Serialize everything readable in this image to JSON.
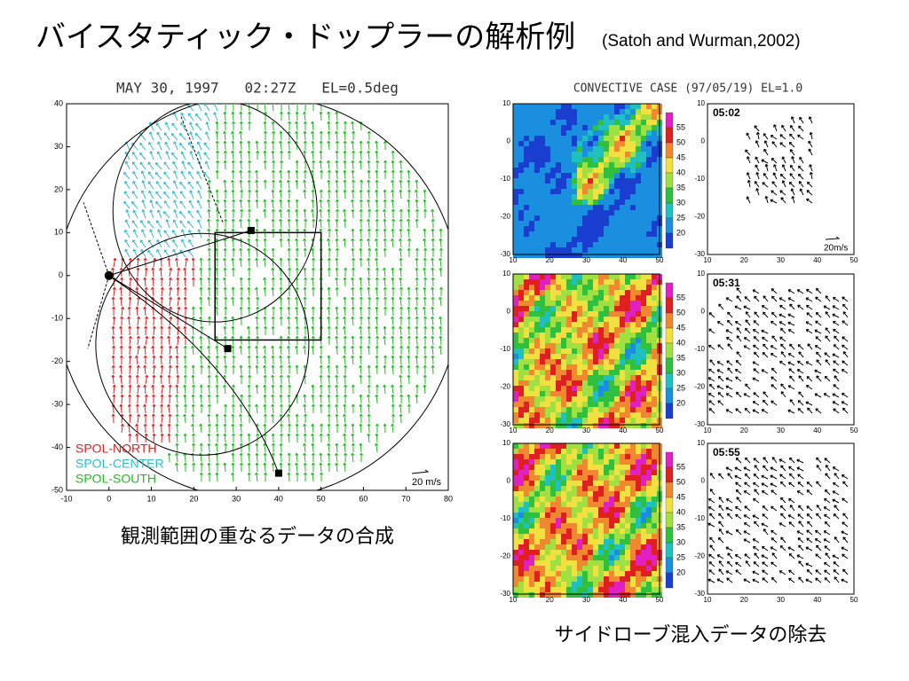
{
  "header": {
    "title": "バイスタティック・ドップラーの解析例",
    "citation": "(Satoh and Wurman,2002)"
  },
  "left_figure": {
    "title": "MAY 30, 1997   02:27Z   EL=0.5deg",
    "xticks": [
      -10,
      0,
      10,
      20,
      30,
      40,
      50,
      60,
      70,
      80
    ],
    "yticks": [
      40,
      30,
      20,
      10,
      0,
      -10,
      -20,
      -30,
      -40,
      -50
    ],
    "legend": [
      "SPOL-NORTH",
      "SPOL-CENTER",
      "SPOL-SOUTH"
    ],
    "scale": "20 m/s",
    "caption": "観測範囲の重なるデータの合成"
  },
  "right_figure": {
    "title": "CONVECTIVE CASE (97/05/19) EL=1.0",
    "panels": [
      {
        "time": "05:02"
      },
      {
        "time": "05:31"
      },
      {
        "time": "05:55"
      }
    ],
    "xticks": [
      10,
      20,
      30,
      40,
      50
    ],
    "yticks": [
      10,
      0,
      -10,
      -20,
      -30
    ],
    "colorbar": [
      55,
      50,
      45,
      40,
      35,
      30,
      25,
      20
    ],
    "scale": "20m/s",
    "caption": "サイドローブ混入データの除去"
  }
}
